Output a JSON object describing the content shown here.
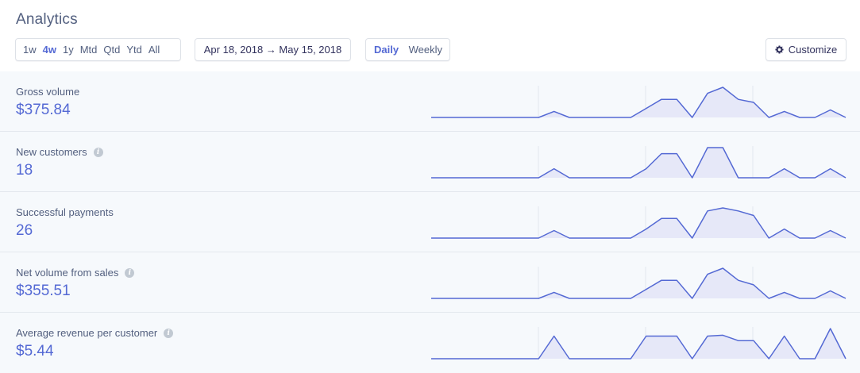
{
  "page": {
    "title": "Analytics"
  },
  "range_selector": {
    "items": [
      "1w",
      "4w",
      "1y",
      "Mtd",
      "Qtd",
      "Ytd",
      "All"
    ],
    "active": "4w"
  },
  "date_range": {
    "label": "Apr 18, 2018 → May 15, 2018"
  },
  "interval_selector": {
    "items": [
      "Daily",
      "Weekly"
    ],
    "active": "Daily"
  },
  "toolbar": {
    "customize_label": "Customize",
    "customize_icon": "gear-icon"
  },
  "colors": {
    "accent": "#5469d4",
    "sparkline_fill": "#e6e8f8",
    "row_background": "#f6f9fc",
    "divider": "#e3e8ee"
  },
  "metrics": [
    {
      "label": "Gross volume",
      "value": "$375.84",
      "has_info": false,
      "series": [
        0,
        0,
        0,
        0,
        0,
        0,
        0,
        0,
        0.2,
        0,
        0,
        0,
        0,
        0,
        0.3,
        0.6,
        0.6,
        0,
        0.8,
        1,
        0.6,
        0.5,
        0,
        0.2,
        0,
        0,
        0.25,
        0
      ]
    },
    {
      "label": "New customers",
      "value": "18",
      "has_info": true,
      "series": [
        0,
        0,
        0,
        0,
        0,
        0,
        0,
        0,
        0.3,
        0,
        0,
        0,
        0,
        0,
        0.3,
        0.8,
        0.8,
        0,
        1,
        1,
        0,
        0,
        0,
        0.3,
        0,
        0,
        0.3,
        0
      ]
    },
    {
      "label": "Successful payments",
      "value": "26",
      "has_info": false,
      "series": [
        0,
        0,
        0,
        0,
        0,
        0,
        0,
        0,
        0.25,
        0,
        0,
        0,
        0,
        0,
        0.3,
        0.65,
        0.65,
        0,
        0.9,
        1,
        0.9,
        0.75,
        0,
        0.3,
        0,
        0,
        0.25,
        0
      ]
    },
    {
      "label": "Net volume from sales",
      "value": "$355.51",
      "has_info": true,
      "series": [
        0,
        0,
        0,
        0,
        0,
        0,
        0,
        0,
        0.2,
        0,
        0,
        0,
        0,
        0,
        0.3,
        0.6,
        0.6,
        0,
        0.8,
        1,
        0.6,
        0.45,
        0,
        0.2,
        0,
        0,
        0.25,
        0
      ]
    },
    {
      "label": "Average revenue per customer",
      "value": "$5.44",
      "has_info": true,
      "series": [
        0,
        0,
        0,
        0,
        0,
        0,
        0,
        0,
        0.75,
        0,
        0,
        0,
        0,
        0,
        0.75,
        0.75,
        0.75,
        0,
        0.75,
        0.78,
        0.6,
        0.6,
        0,
        0.75,
        0,
        0,
        1,
        0
      ]
    }
  ]
}
